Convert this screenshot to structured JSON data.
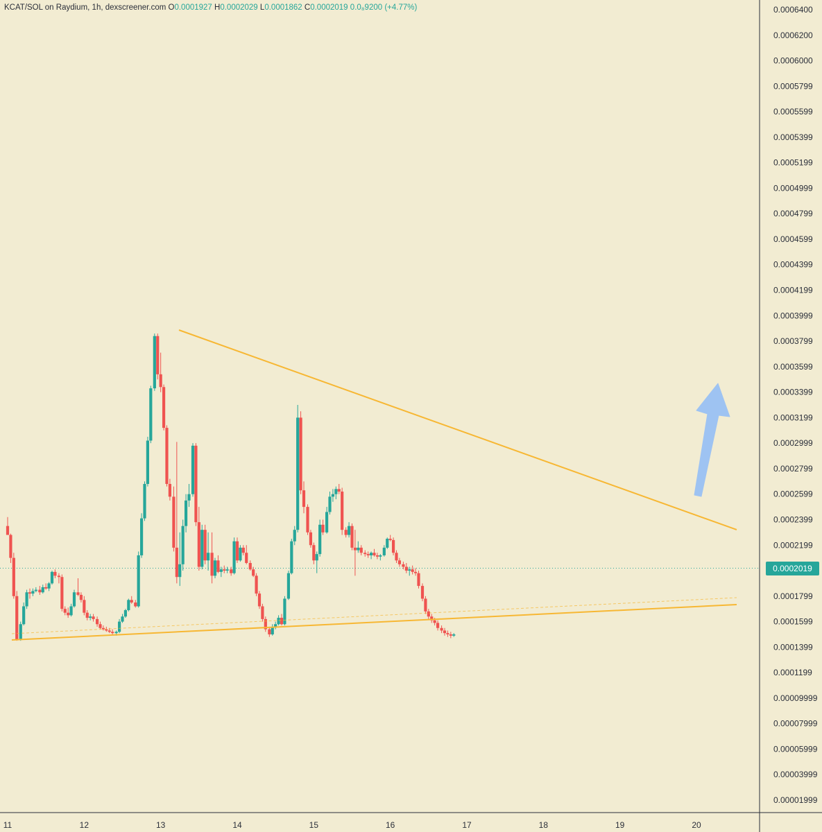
{
  "legend": {
    "pair": "KCAT/SOL on Raydium, 1h, dexscreener.com",
    "o_label": "O",
    "o_value": "0.0001927",
    "h_label": "H",
    "h_value": "0.0002029",
    "l_label": "L",
    "l_value": "0.0001862",
    "c_label": "C",
    "c_value": "0.0002019",
    "change": "0.0₈9200 (+4.77%)"
  },
  "colors": {
    "background": "#f2ecd2",
    "up": "#26a69a",
    "down": "#ef5350",
    "trendline": "#f7b733",
    "arrow": "#9ec3f2",
    "axis_text": "#2a2e39"
  },
  "last_price": "0.0002019",
  "chart_data": {
    "type": "candlestick",
    "timeframe": "1h",
    "x_tick_labels": [
      "11",
      "12",
      "13",
      "14",
      "15",
      "16",
      "17",
      "18",
      "19",
      "20"
    ],
    "y_tick_labels": [
      "0.0006400",
      "0.0006200",
      "0.0006000",
      "0.0005799",
      "0.0005599",
      "0.0005399",
      "0.0005199",
      "0.0004999",
      "0.0004799",
      "0.0004599",
      "0.0004399",
      "0.0004199",
      "0.0003999",
      "0.0003799",
      "0.0003599",
      "0.0003399",
      "0.0003199",
      "0.0002999",
      "0.0002799",
      "0.0002599",
      "0.0002399",
      "0.0002199",
      "0.0001999",
      "0.0001799",
      "0.0001599",
      "0.0001399",
      "0.0001199",
      "0.00009999",
      "0.00007999",
      "0.00005999",
      "0.00003999",
      "0.00001999"
    ],
    "ylim": [
      1.17e-05,
      0.000642
    ],
    "xlim": [
      11.0,
      20.8
    ],
    "last_price": 0.0002019,
    "candles": [
      [
        11.0,
        0.000235,
        0.000242,
        0.000228,
        0.000228
      ],
      [
        11.04,
        0.000228,
        0.000229,
        0.000206,
        0.00021
      ],
      [
        11.08,
        0.00021,
        0.000214,
        0.000178,
        0.00018
      ],
      [
        11.12,
        0.00018,
        0.000184,
        0.000145,
        0.000146
      ],
      [
        11.17,
        0.000146,
        0.00016,
        0.000145,
        0.000158
      ],
      [
        11.21,
        0.000158,
        0.000175,
        0.000157,
        0.000172
      ],
      [
        11.25,
        0.000172,
        0.000185,
        0.00017,
        0.000183
      ],
      [
        11.29,
        0.000183,
        0.000186,
        0.000178,
        0.000182
      ],
      [
        11.33,
        0.000182,
        0.000186,
        0.00018,
        0.000184
      ],
      [
        11.37,
        0.000184,
        0.000187,
        0.000183,
        0.000185
      ],
      [
        11.42,
        0.000185,
        0.000188,
        0.000181,
        0.000183
      ],
      [
        11.46,
        0.000183,
        0.000189,
        0.000182,
        0.000187
      ],
      [
        11.5,
        0.000187,
        0.00019,
        0.000185,
        0.000186
      ],
      [
        11.54,
        0.000186,
        0.000191,
        0.000184,
        0.00019
      ],
      [
        11.58,
        0.00019,
        0.0002,
        0.000189,
        0.000199
      ],
      [
        11.62,
        0.000199,
        0.000201,
        0.000194,
        0.000196
      ],
      [
        11.67,
        0.000196,
        0.000198,
        0.00019,
        0.000195
      ],
      [
        11.71,
        0.000195,
        0.000197,
        0.000168,
        0.00017
      ],
      [
        11.75,
        0.00017,
        0.000172,
        0.000165,
        0.000167
      ],
      [
        11.79,
        0.000167,
        0.000171,
        0.000163,
        0.000165
      ],
      [
        11.83,
        0.000165,
        0.000174,
        0.000164,
        0.000172
      ],
      [
        11.87,
        0.000172,
        0.000185,
        0.000171,
        0.000183
      ],
      [
        11.92,
        0.000183,
        0.000194,
        0.00018,
        0.000181
      ],
      [
        11.96,
        0.000181,
        0.000183,
        0.000175,
        0.000177
      ],
      [
        12.0,
        0.000177,
        0.00018,
        0.000165,
        0.000167
      ],
      [
        12.04,
        0.000167,
        0.000169,
        0.000161,
        0.000163
      ],
      [
        12.08,
        0.000163,
        0.000166,
        0.000161,
        0.000164
      ],
      [
        12.12,
        0.000164,
        0.000166,
        0.00016,
        0.000162
      ],
      [
        12.17,
        0.000162,
        0.000164,
        0.000156,
        0.000158
      ],
      [
        12.21,
        0.000158,
        0.00016,
        0.000154,
        0.000155
      ],
      [
        12.25,
        0.000155,
        0.000157,
        0.000153,
        0.000154
      ],
      [
        12.29,
        0.000154,
        0.000156,
        0.000152,
        0.000153
      ],
      [
        12.33,
        0.000153,
        0.000155,
        0.000151,
        0.000152
      ],
      [
        12.37,
        0.000152,
        0.000154,
        0.00015,
        0.000151
      ],
      [
        12.42,
        0.000151,
        0.000153,
        0.000149,
        0.000152
      ],
      [
        12.46,
        0.000152,
        0.000162,
        0.000151,
        0.00016
      ],
      [
        12.5,
        0.00016,
        0.000166,
        0.000159,
        0.000164
      ],
      [
        12.54,
        0.000164,
        0.00017,
        0.000163,
        0.000169
      ],
      [
        12.58,
        0.000169,
        0.000178,
        0.000168,
        0.000177
      ],
      [
        12.62,
        0.000177,
        0.00018,
        0.000174,
        0.000175
      ],
      [
        12.67,
        0.000175,
        0.000177,
        0.000171,
        0.000172
      ],
      [
        12.71,
        0.000172,
        0.000215,
        0.000171,
        0.000212
      ],
      [
        12.75,
        0.000212,
        0.000245,
        0.00021,
        0.000241
      ],
      [
        12.79,
        0.000241,
        0.00027,
        0.000239,
        0.000268
      ],
      [
        12.83,
        0.000268,
        0.000305,
        0.000266,
        0.000302
      ],
      [
        12.87,
        0.000302,
        0.000345,
        0.0003,
        0.000343
      ],
      [
        12.92,
        0.000343,
        0.000386,
        0.000341,
        0.000384
      ],
      [
        12.96,
        0.000384,
        0.000386,
        0.00035,
        0.000354
      ],
      [
        13.0,
        0.000354,
        0.000371,
        0.00034,
        0.000344
      ],
      [
        13.04,
        0.000344,
        0.000346,
        0.00031,
        0.000312
      ],
      [
        13.08,
        0.000312,
        0.000314,
        0.000266,
        0.000268
      ],
      [
        13.12,
        0.000268,
        0.000272,
        0.000255,
        0.000258
      ],
      [
        13.17,
        0.000258,
        0.000266,
        0.000215,
        0.000218
      ],
      [
        13.21,
        0.000218,
        0.000301,
        0.00019,
        0.000195
      ],
      [
        13.25,
        0.000195,
        0.00023,
        0.000188,
        0.000205
      ],
      [
        13.29,
        0.000205,
        0.00024,
        0.0002,
        0.000235
      ],
      [
        13.33,
        0.000235,
        0.00026,
        0.00023,
        0.000255
      ],
      [
        13.37,
        0.000255,
        0.000268,
        0.00025,
        0.00026
      ],
      [
        13.42,
        0.00026,
        0.0003,
        0.000258,
        0.000298
      ],
      [
        13.46,
        0.000298,
        0.0003,
        0.000235,
        0.000238
      ],
      [
        13.5,
        0.000238,
        0.00025,
        0.0002,
        0.000203
      ],
      [
        13.54,
        0.000203,
        0.000236,
        0.000201,
        0.000232
      ],
      [
        13.58,
        0.000232,
        0.000236,
        0.000205,
        0.000208
      ],
      [
        13.62,
        0.000208,
        0.00023,
        0.0002,
        0.000214
      ],
      [
        13.67,
        0.000214,
        0.00023,
        0.00019,
        0.000196
      ],
      [
        13.71,
        0.000196,
        0.00021,
        0.000194,
        0.000208
      ],
      [
        13.75,
        0.000208,
        0.000212,
        0.000198,
        0.000199
      ],
      [
        13.79,
        0.000199,
        0.000203,
        0.000195,
        0.000201
      ],
      [
        13.83,
        0.000201,
        0.000204,
        0.000198,
        0.0002
      ],
      [
        13.87,
        0.0002,
        0.000203,
        0.000198,
        0.000201
      ],
      [
        13.92,
        0.000201,
        0.000203,
        0.000196,
        0.000198
      ],
      [
        13.96,
        0.000198,
        0.000226,
        0.000197,
        0.000223
      ],
      [
        14.0,
        0.000223,
        0.000226,
        0.000206,
        0.000208
      ],
      [
        14.04,
        0.000208,
        0.00022,
        0.000207,
        0.000218
      ],
      [
        14.08,
        0.000218,
        0.00022,
        0.000212,
        0.000214
      ],
      [
        14.12,
        0.000214,
        0.00022,
        0.000205,
        0.000206
      ],
      [
        14.17,
        0.000206,
        0.000208,
        0.0002,
        0.000201
      ],
      [
        14.21,
        0.000201,
        0.000203,
        0.000195,
        0.000196
      ],
      [
        14.25,
        0.000196,
        0.000198,
        0.00018,
        0.000182
      ],
      [
        14.29,
        0.000182,
        0.000184,
        0.00017,
        0.000172
      ],
      [
        14.33,
        0.000172,
        0.000174,
        0.00016,
        0.000162
      ],
      [
        14.37,
        0.000162,
        0.000164,
        0.000152,
        0.000154
      ],
      [
        14.42,
        0.000154,
        0.000156,
        0.000148,
        0.00015
      ],
      [
        14.46,
        0.00015,
        0.000158,
        0.000149,
        0.000156
      ],
      [
        14.5,
        0.000156,
        0.00016,
        0.000154,
        0.000158
      ],
      [
        14.54,
        0.000158,
        0.000165,
        0.000157,
        0.000163
      ],
      [
        14.58,
        0.000163,
        0.000166,
        0.000157,
        0.000158
      ],
      [
        14.62,
        0.000158,
        0.00018,
        0.000157,
        0.000178
      ],
      [
        14.67,
        0.000178,
        0.0002,
        0.000177,
        0.000198
      ],
      [
        14.71,
        0.000198,
        0.000225,
        0.000197,
        0.000223
      ],
      [
        14.75,
        0.000223,
        0.000235,
        0.00022,
        0.000232
      ],
      [
        14.79,
        0.000232,
        0.00033,
        0.00023,
        0.00032
      ],
      [
        14.83,
        0.00032,
        0.000325,
        0.00026,
        0.000263
      ],
      [
        14.87,
        0.000263,
        0.00027,
        0.000245,
        0.00025
      ],
      [
        14.92,
        0.00025,
        0.000252,
        0.000228,
        0.00023
      ],
      [
        14.96,
        0.00023,
        0.000232,
        0.000218,
        0.00022
      ],
      [
        15.0,
        0.00022,
        0.000222,
        0.000205,
        0.000208
      ],
      [
        15.04,
        0.000208,
        0.000215,
        0.000198,
        0.000213
      ],
      [
        15.08,
        0.000213,
        0.00024,
        0.000211,
        0.000236
      ],
      [
        15.12,
        0.000236,
        0.00024,
        0.000228,
        0.00023
      ],
      [
        15.17,
        0.00023,
        0.00025,
        0.000229,
        0.000246
      ],
      [
        15.21,
        0.000246,
        0.000262,
        0.000244,
        0.000258
      ],
      [
        15.25,
        0.000258,
        0.000264,
        0.000254,
        0.00026
      ],
      [
        15.29,
        0.00026,
        0.000266,
        0.000256,
        0.000264
      ],
      [
        15.33,
        0.000264,
        0.000268,
        0.00026,
        0.000262
      ],
      [
        15.37,
        0.000262,
        0.000265,
        0.000228,
        0.000232
      ],
      [
        15.42,
        0.000232,
        0.000234,
        0.000226,
        0.000228
      ],
      [
        15.46,
        0.000228,
        0.000238,
        0.000226,
        0.000235
      ],
      [
        15.5,
        0.000235,
        0.000237,
        0.000216,
        0.000218
      ],
      [
        15.54,
        0.000218,
        0.000232,
        0.000196,
        0.000216
      ],
      [
        15.58,
        0.000216,
        0.000223,
        0.000214,
        0.000218
      ],
      [
        15.62,
        0.000218,
        0.00022,
        0.000212,
        0.000214
      ],
      [
        15.67,
        0.000214,
        0.000216,
        0.000211,
        0.000213
      ],
      [
        15.71,
        0.000213,
        0.000215,
        0.00021,
        0.000212
      ],
      [
        15.75,
        0.000212,
        0.000215,
        0.000209,
        0.000214
      ],
      [
        15.79,
        0.000214,
        0.000217,
        0.000211,
        0.000212
      ],
      [
        15.83,
        0.000212,
        0.000214,
        0.000209,
        0.000211
      ],
      [
        15.87,
        0.000211,
        0.000213,
        0.000208,
        0.000212
      ],
      [
        15.92,
        0.000212,
        0.00022,
        0.000211,
        0.000218
      ],
      [
        15.96,
        0.000218,
        0.000226,
        0.000217,
        0.000225
      ],
      [
        16.0,
        0.000225,
        0.000228,
        0.000223,
        0.000224
      ],
      [
        16.04,
        0.000224,
        0.000226,
        0.000212,
        0.000214
      ],
      [
        16.08,
        0.000214,
        0.000216,
        0.000206,
        0.000208
      ],
      [
        16.12,
        0.000208,
        0.00021,
        0.000203,
        0.000205
      ],
      [
        16.17,
        0.000205,
        0.000207,
        0.000201,
        0.000203
      ],
      [
        16.21,
        0.000203,
        0.000206,
        0.000198,
        0.0002
      ],
      [
        16.25,
        0.0002,
        0.000203,
        0.000196,
        0.000201
      ],
      [
        16.29,
        0.000201,
        0.000204,
        0.000197,
        0.000199
      ],
      [
        16.33,
        0.000199,
        0.000202,
        0.000196,
        0.000198
      ],
      [
        16.37,
        0.000198,
        0.0002,
        0.000186,
        0.000188
      ],
      [
        16.42,
        0.000188,
        0.00019,
        0.000176,
        0.000178
      ],
      [
        16.46,
        0.000178,
        0.00018,
        0.000166,
        0.000168
      ],
      [
        16.5,
        0.000168,
        0.00017,
        0.000162,
        0.000164
      ],
      [
        16.54,
        0.000164,
        0.000166,
        0.000159,
        0.000161
      ],
      [
        16.58,
        0.000161,
        0.000163,
        0.000157,
        0.000159
      ],
      [
        16.62,
        0.000159,
        0.000161,
        0.000153,
        0.000155
      ],
      [
        16.67,
        0.000155,
        0.000157,
        0.000151,
        0.000153
      ],
      [
        16.71,
        0.000153,
        0.000155,
        0.000149,
        0.000151
      ],
      [
        16.75,
        0.000151,
        0.000153,
        0.000148,
        0.00015
      ],
      [
        16.79,
        0.00015,
        0.000152,
        0.000147,
        0.000149
      ],
      [
        16.83,
        0.000149,
        0.000151,
        0.000148,
        0.00015
      ]
    ]
  }
}
